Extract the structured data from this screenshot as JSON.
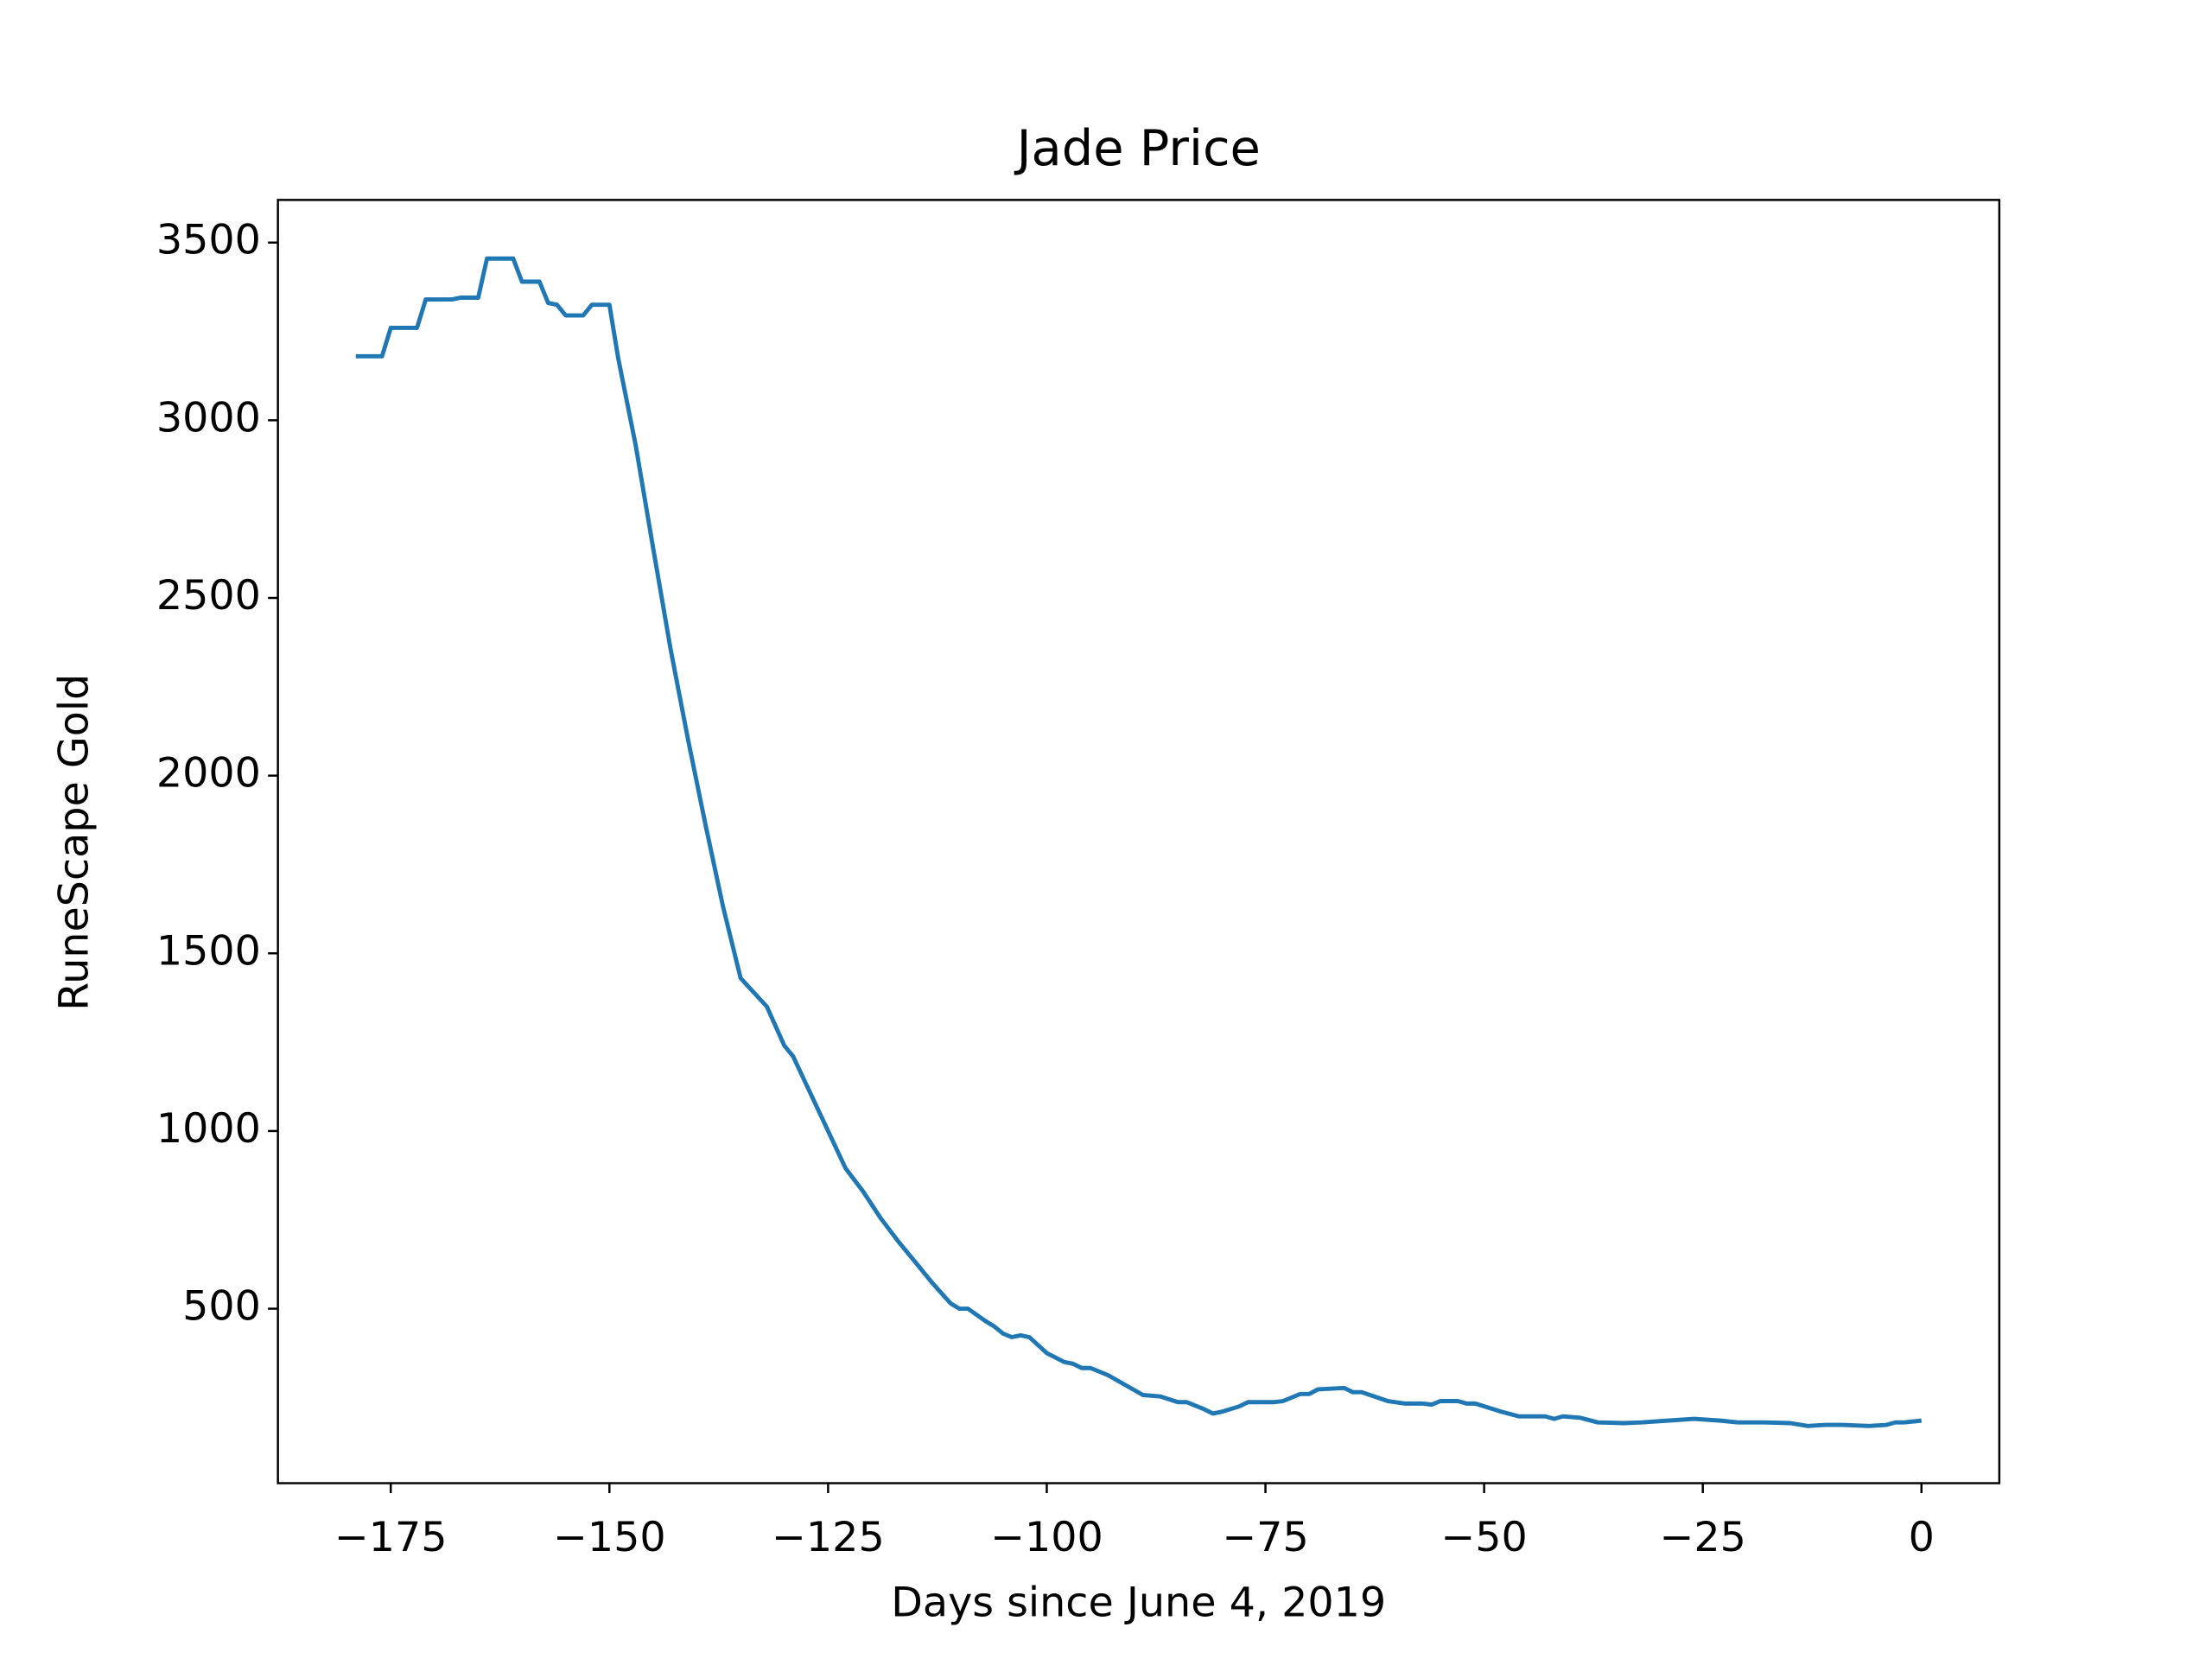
{
  "chart_data": {
    "type": "line",
    "title": "Jade Price",
    "xlabel": "Days since June 4, 2019",
    "ylabel": "RuneScape Gold",
    "x": [
      -179,
      -176,
      -175,
      -172,
      -171,
      -168,
      -167,
      -165,
      -164,
      -161,
      -160,
      -158,
      -157,
      -156,
      -155,
      -153,
      -152,
      -150,
      -149,
      -147,
      -145,
      -143,
      -141,
      -139,
      -137,
      -135,
      -132,
      -130,
      -129,
      -127,
      -125,
      -123,
      -121,
      -119,
      -117,
      -115,
      -113,
      -111,
      -110,
      -109,
      -107,
      -106,
      -105,
      -104,
      -103,
      -102,
      -100,
      -98,
      -97,
      -96,
      -95,
      -93,
      -91,
      -89,
      -87,
      -85,
      -84,
      -82,
      -81,
      -80,
      -78,
      -77,
      -74,
      -73,
      -71,
      -70,
      -69,
      -66,
      -65,
      -64,
      -61,
      -59,
      -57,
      -56,
      -55,
      -53,
      -52,
      -51,
      -48,
      -46,
      -43,
      -42,
      -41,
      -39,
      -37,
      -34,
      -32,
      -29,
      -26,
      -23,
      -21,
      -18,
      -15,
      -13,
      -11,
      -9,
      -6,
      -4,
      -3,
      -2,
      0
    ],
    "series": [
      {
        "name": "Jade",
        "color": "#1f77b4",
        "values": [
          3180,
          3180,
          3260,
          3260,
          3340,
          3340,
          3345,
          3345,
          3455,
          3455,
          3390,
          3390,
          3330,
          3325,
          3295,
          3295,
          3325,
          3325,
          3175,
          2930,
          2640,
          2355,
          2100,
          1860,
          1630,
          1430,
          1350,
          1240,
          1210,
          1105,
          1000,
          895,
          830,
          755,
          690,
          630,
          570,
          515,
          500,
          500,
          465,
          450,
          430,
          420,
          425,
          420,
          375,
          350,
          345,
          333,
          333,
          313,
          285,
          257,
          253,
          237,
          237,
          217,
          205,
          210,
          225,
          237,
          237,
          240,
          260,
          260,
          273,
          277,
          265,
          265,
          240,
          233,
          233,
          230,
          240,
          240,
          233,
          233,
          210,
          197,
          197,
          190,
          197,
          193,
          180,
          178,
          180,
          185,
          190,
          185,
          180,
          180,
          178,
          170,
          173,
          173,
          170,
          173,
          180,
          180,
          185
        ]
      }
    ],
    "xlim": [
      -187.9,
      8.9
    ],
    "ylim": [
      9,
      3620
    ],
    "xticks": [
      {
        "value": -175,
        "label": "−175"
      },
      {
        "value": -150,
        "label": "−150"
      },
      {
        "value": -125,
        "label": "−125"
      },
      {
        "value": -100,
        "label": "−100"
      },
      {
        "value": -75,
        "label": "−75"
      },
      {
        "value": -50,
        "label": "−50"
      },
      {
        "value": -25,
        "label": "−25"
      },
      0
    ],
    "yticks": [
      500,
      1000,
      1500,
      2000,
      2500,
      3000,
      3500
    ],
    "grid": false
  }
}
